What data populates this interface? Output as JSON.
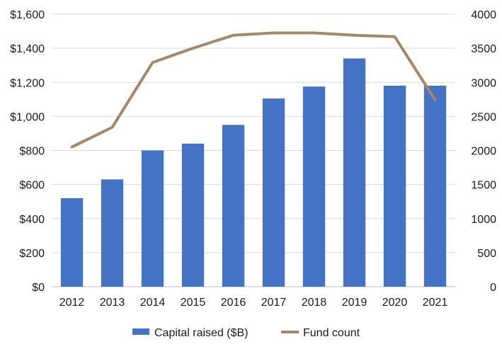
{
  "chart_data": {
    "type": "bar",
    "categories": [
      "2012",
      "2013",
      "2014",
      "2015",
      "2016",
      "2017",
      "2018",
      "2019",
      "2020",
      "2021"
    ],
    "series": [
      {
        "name": "Capital raised ($B)",
        "kind": "bar",
        "axis": "left",
        "color": "#4472C4",
        "values": [
          520,
          630,
          800,
          840,
          950,
          1105,
          1175,
          1340,
          1180,
          1180
        ]
      },
      {
        "name": "Fund count",
        "kind": "line",
        "axis": "right",
        "color": "#A58869",
        "values": [
          2050,
          2340,
          3290,
          3500,
          3690,
          3725,
          3725,
          3690,
          3670,
          2740
        ]
      }
    ],
    "y_left": {
      "range": [
        0,
        1600
      ],
      "ticks": [
        0,
        200,
        400,
        600,
        800,
        1000,
        1200,
        1400,
        1600
      ],
      "tick_labels": [
        "$0",
        "$200",
        "$400",
        "$600",
        "$800",
        "$1,000",
        "$1,200",
        "$1,400",
        "$1,600"
      ]
    },
    "y_right": {
      "range": [
        0,
        4000
      ],
      "ticks": [
        0,
        500,
        1000,
        1500,
        2000,
        2500,
        3000,
        3500,
        4000
      ],
      "tick_labels": [
        "0",
        "500",
        "1000",
        "1500",
        "2000",
        "2500",
        "3000",
        "3500",
        "4000"
      ]
    },
    "grid": true,
    "legend_position": "bottom",
    "title": "",
    "xlabel": "",
    "ylabel": ""
  }
}
